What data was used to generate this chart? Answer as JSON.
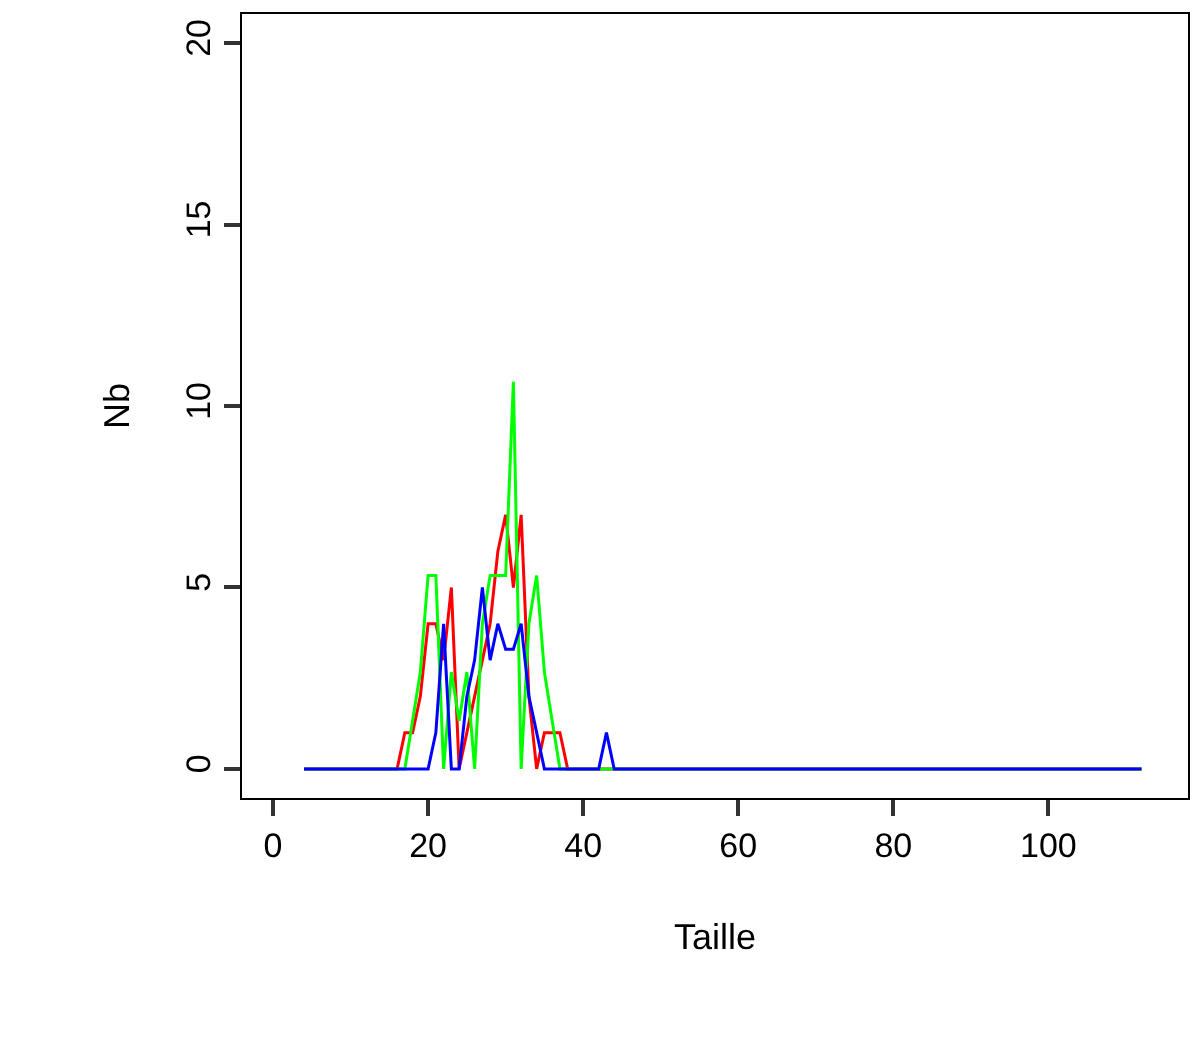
{
  "chart_data": {
    "type": "line",
    "xlabel": "Taille",
    "ylabel": "Nb",
    "xlim": [
      -4,
      118
    ],
    "xticks": [
      0,
      20,
      40,
      60,
      80,
      100
    ],
    "ylim": [
      -0.8,
      20.8
    ],
    "yticks": [
      0,
      5,
      10,
      15,
      20
    ],
    "marker": "none",
    "line_style": "solid",
    "series": [
      {
        "color": "#ff0000",
        "x": [
          4,
          16,
          17,
          18,
          19,
          20,
          21,
          22,
          23,
          24,
          25,
          26,
          27,
          28,
          29,
          30,
          31,
          32,
          33,
          34,
          35,
          36,
          37,
          38,
          112
        ],
        "values": [
          0,
          0,
          1,
          1,
          2,
          4,
          4,
          3,
          5,
          0,
          1,
          2,
          3,
          4,
          6,
          7,
          5,
          7,
          2,
          0,
          1,
          1,
          1,
          0,
          0
        ]
      },
      {
        "color": "#00ff00",
        "x": [
          4,
          17,
          18,
          19,
          20,
          21,
          22,
          23,
          24,
          25,
          26,
          27,
          28,
          29,
          30,
          31,
          32,
          33,
          34,
          35,
          36,
          37,
          112
        ],
        "values": [
          0,
          0,
          1.33,
          2.67,
          5.33,
          5.33,
          0,
          2.67,
          1.33,
          2.67,
          0,
          4,
          5.33,
          5.33,
          5.33,
          10.67,
          0,
          4,
          5.33,
          2.67,
          1.33,
          0,
          0
        ]
      },
      {
        "color": "#0000ff",
        "x": [
          4,
          20,
          21,
          22,
          23,
          24,
          25,
          26,
          27,
          28,
          29,
          30,
          31,
          32,
          33,
          34,
          35,
          42,
          43,
          44,
          112
        ],
        "values": [
          0,
          0,
          1,
          4,
          0,
          0,
          2,
          3,
          5,
          3,
          4,
          3.3,
          3.3,
          4,
          2,
          1,
          0,
          0,
          1,
          0,
          0
        ]
      }
    ]
  }
}
